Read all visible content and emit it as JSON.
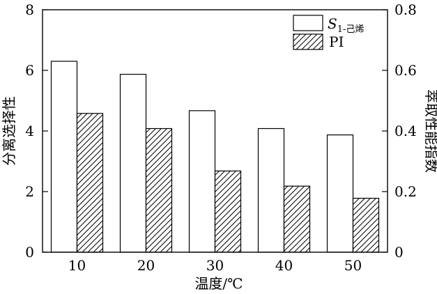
{
  "chart_data": {
    "type": "bar",
    "categories": [
      "10",
      "20",
      "30",
      "40",
      "50"
    ],
    "series": [
      {
        "name": "S1-己烯",
        "axis": "left",
        "fill": "#ffffff",
        "pattern": "none",
        "values": [
          6.3,
          5.87,
          4.67,
          4.08,
          3.87
        ]
      },
      {
        "name": "PI",
        "axis": "right",
        "fill": "hatch",
        "pattern": "diagonal",
        "values": [
          0.458,
          0.408,
          0.268,
          0.218,
          0.178
        ]
      }
    ],
    "legend": {
      "s_label_main": "S",
      "s_label_sub": "1-己烯",
      "pi_label": "PI",
      "position": "top-right"
    },
    "xlabel": "温度/℃",
    "ylabel_left": "分离选择性",
    "ylabel_right": "萃取性能指数",
    "ylim_left": [
      0,
      8
    ],
    "ylim_right": [
      0,
      0.8
    ],
    "yticks_left": [
      "0",
      "2",
      "4",
      "6",
      "8"
    ],
    "yticks_right": [
      "0",
      "0.2",
      "0.4",
      "0.6",
      "0.8"
    ],
    "grid": false
  }
}
